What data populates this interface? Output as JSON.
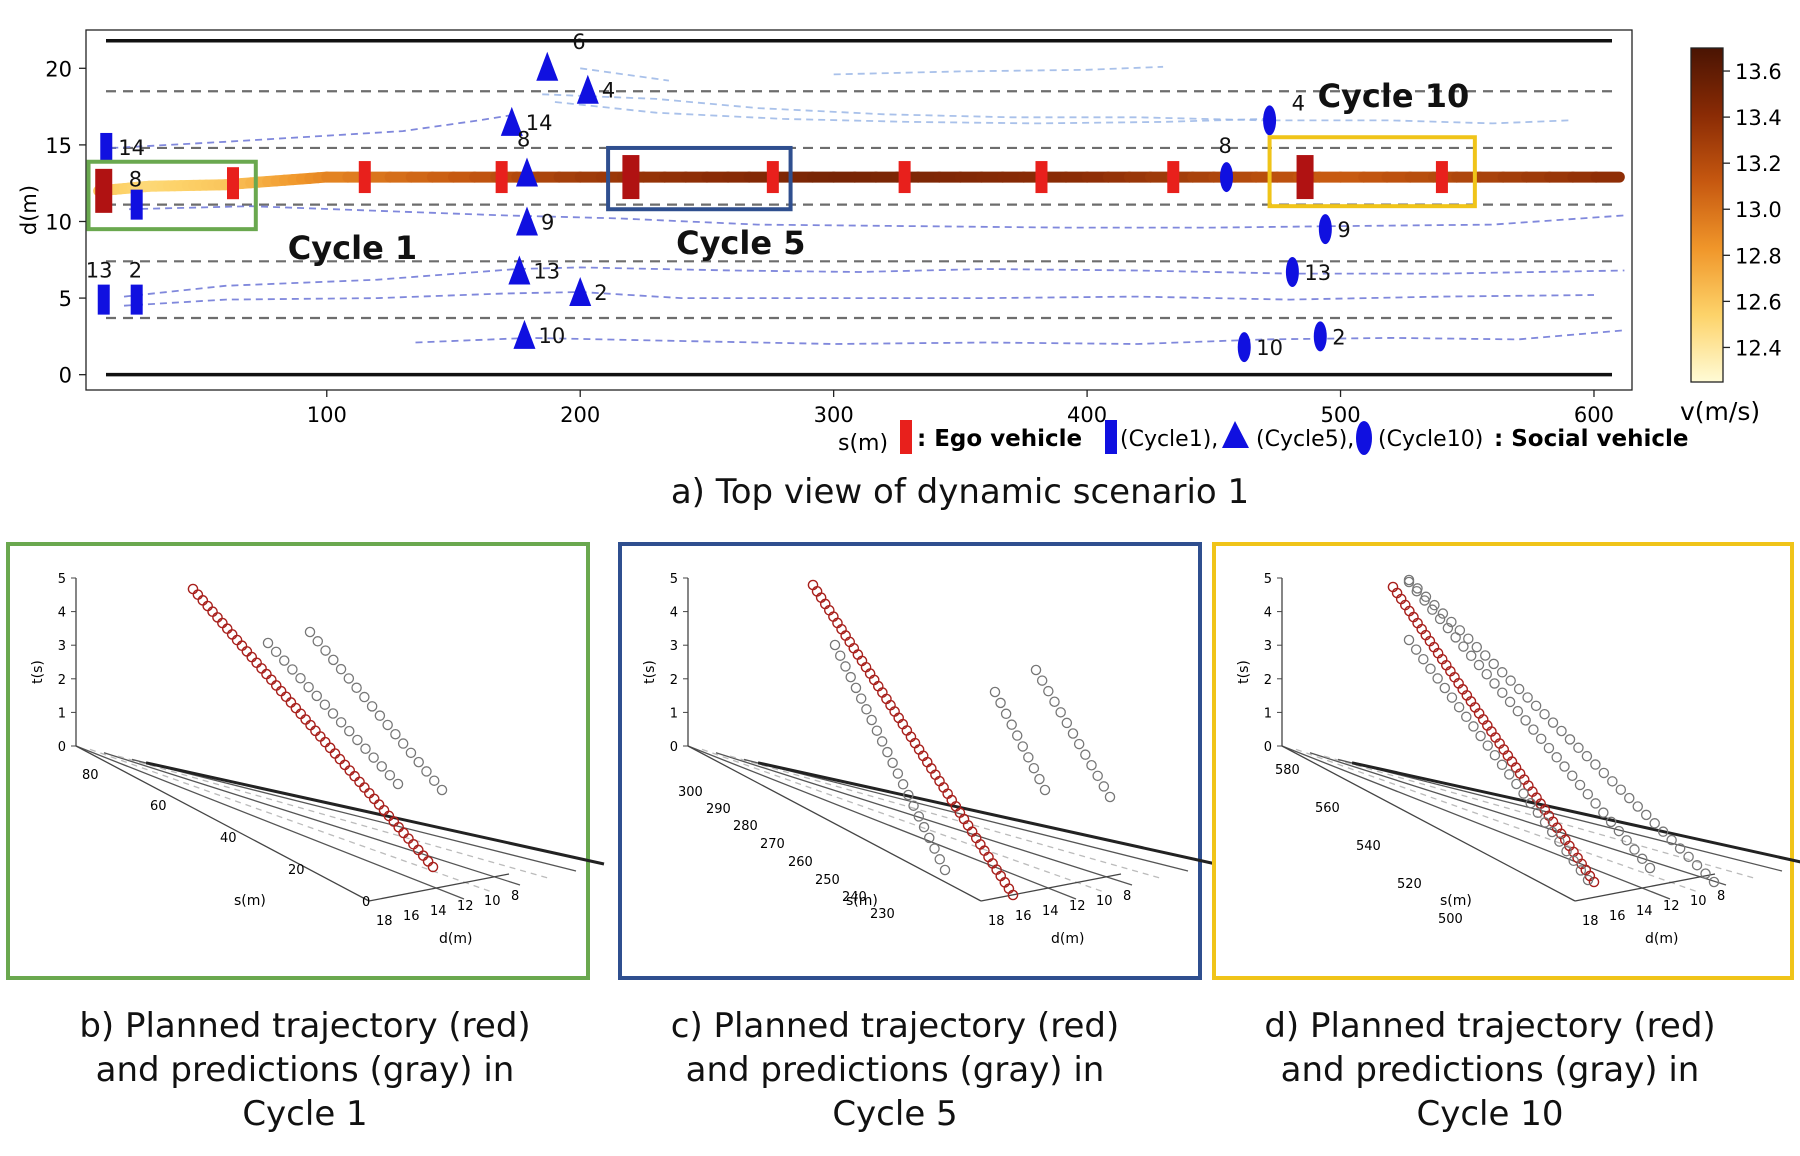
{
  "chart_data": [
    {
      "type": "scatter",
      "name": "top-view",
      "xlabel": "s(m)",
      "ylabel": "d(m)",
      "xlim": [
        5,
        615
      ],
      "ylim": [
        -1,
        22.5
      ],
      "xticks": [
        100,
        200,
        300,
        400,
        500,
        600
      ],
      "yticks": [
        0,
        5,
        10,
        15,
        20
      ],
      "lane_boundaries_solid": [
        0,
        21.8
      ],
      "lane_lines_dashed": [
        3.7,
        7.4,
        11.1,
        14.8,
        18.5
      ],
      "colorbar": {
        "label": "v(m/s)",
        "ticks": [
          12.4,
          12.6,
          12.8,
          13.0,
          13.2,
          13.4,
          13.6
        ],
        "range": [
          12.25,
          13.7
        ],
        "colors": [
          "#fffbd6",
          "#fdd36a",
          "#f0962a",
          "#c65810",
          "#8a2b05",
          "#4a1403"
        ]
      },
      "ego_trajectory": {
        "points": [
          [
            10,
            12.0
          ],
          [
            30,
            12.3
          ],
          [
            60,
            12.4
          ],
          [
            100,
            12.9
          ],
          [
            200,
            12.9
          ],
          [
            300,
            12.9
          ],
          [
            400,
            12.9
          ],
          [
            500,
            12.9
          ],
          [
            610,
            12.9
          ]
        ],
        "speed": [
          12.6,
          12.5,
          12.6,
          12.9,
          13.3,
          13.5,
          13.4,
          13.1,
          13.4
        ]
      },
      "ego_markers": [
        {
          "s": 12,
          "d": 12,
          "big": true
        },
        {
          "s": 63,
          "d": 12.5,
          "big": false
        },
        {
          "s": 115,
          "d": 12.9,
          "big": false
        },
        {
          "s": 169,
          "d": 12.9,
          "big": false
        },
        {
          "s": 220,
          "d": 12.9,
          "big": true
        },
        {
          "s": 276,
          "d": 12.9,
          "big": false
        },
        {
          "s": 328,
          "d": 12.9,
          "big": false
        },
        {
          "s": 382,
          "d": 12.9,
          "big": false
        },
        {
          "s": 434,
          "d": 12.9,
          "big": false
        },
        {
          "s": 486,
          "d": 12.9,
          "big": true
        },
        {
          "s": 540,
          "d": 12.9,
          "big": false
        }
      ],
      "social_cycle1": [
        {
          "id": "14",
          "s": 13,
          "d": 14.8
        },
        {
          "id": "8",
          "s": 25,
          "d": 11.1
        },
        {
          "id": "13",
          "s": 12,
          "d": 4.9
        },
        {
          "id": "2",
          "s": 25,
          "d": 4.9
        }
      ],
      "social_cycle5": [
        {
          "id": "6",
          "s": 187,
          "d": 20.1
        },
        {
          "id": "4",
          "s": 203,
          "d": 18.6
        },
        {
          "id": "14",
          "s": 173,
          "d": 16.5
        },
        {
          "id": "8",
          "s": 179,
          "d": 13.2
        },
        {
          "id": "9",
          "s": 179,
          "d": 10.0
        },
        {
          "id": "13",
          "s": 176,
          "d": 6.8
        },
        {
          "id": "2",
          "s": 200,
          "d": 5.4
        },
        {
          "id": "10",
          "s": 178,
          "d": 2.6
        }
      ],
      "social_cycle10": [
        {
          "id": "4",
          "s": 472,
          "d": 16.6
        },
        {
          "id": "8",
          "s": 455,
          "d": 12.9
        },
        {
          "id": "9",
          "s": 494,
          "d": 9.5
        },
        {
          "id": "13",
          "s": 481,
          "d": 6.7
        },
        {
          "id": "10",
          "s": 462,
          "d": 1.8
        },
        {
          "id": "2",
          "s": 492,
          "d": 2.5
        }
      ],
      "dashed_trajectories": [
        [
          [
            15,
            14.8
          ],
          [
            60,
            15.2
          ],
          [
            100,
            15.6
          ],
          [
            130,
            15.9
          ],
          [
            160,
            16.6
          ],
          [
            175,
            17.0
          ]
        ],
        [
          [
            22,
            10.8
          ],
          [
            70,
            11.0
          ],
          [
            120,
            10.7
          ],
          [
            170,
            10.4
          ],
          [
            215,
            10.2
          ],
          [
            270,
            9.8
          ],
          [
            330,
            9.7
          ],
          [
            390,
            9.6
          ],
          [
            450,
            9.6
          ],
          [
            500,
            9.7
          ],
          [
            560,
            9.8
          ],
          [
            612,
            10.4
          ]
        ],
        [
          [
            20,
            5.1
          ],
          [
            60,
            5.8
          ],
          [
            120,
            6.2
          ],
          [
            175,
            6.9
          ],
          [
            200,
            7.0
          ],
          [
            260,
            6.8
          ],
          [
            310,
            6.7
          ],
          [
            360,
            6.9
          ],
          [
            420,
            6.8
          ],
          [
            480,
            6.6
          ],
          [
            540,
            6.6
          ],
          [
            612,
            6.8
          ]
        ],
        [
          [
            20,
            4.5
          ],
          [
            60,
            4.9
          ],
          [
            120,
            5.0
          ],
          [
            170,
            5.3
          ],
          [
            200,
            5.4
          ],
          [
            240,
            5.0
          ],
          [
            300,
            5.0
          ],
          [
            360,
            5.0
          ],
          [
            420,
            5.1
          ],
          [
            480,
            4.9
          ],
          [
            540,
            5.1
          ],
          [
            600,
            5.2
          ]
        ],
        [
          [
            135,
            2.1
          ],
          [
            180,
            2.4
          ],
          [
            240,
            2.2
          ],
          [
            300,
            2.0
          ],
          [
            360,
            2.1
          ],
          [
            420,
            2.0
          ],
          [
            470,
            2.3
          ],
          [
            520,
            2.4
          ],
          [
            570,
            2.3
          ],
          [
            612,
            2.9
          ]
        ],
        [
          [
            190,
            17.8
          ],
          [
            230,
            17.1
          ],
          [
            280,
            16.7
          ],
          [
            330,
            16.5
          ],
          [
            380,
            16.4
          ],
          [
            430,
            16.5
          ],
          [
            470,
            16.7
          ]
        ],
        [
          [
            185,
            18.3
          ],
          [
            230,
            18.0
          ],
          [
            270,
            17.4
          ],
          [
            320,
            17.0
          ],
          [
            370,
            16.8
          ],
          [
            420,
            16.8
          ],
          [
            470,
            16.6
          ],
          [
            520,
            16.6
          ],
          [
            560,
            16.4
          ],
          [
            590,
            16.6
          ]
        ],
        [
          [
            200,
            20.0
          ],
          [
            235,
            19.2
          ]
        ],
        [
          [
            300,
            19.6
          ],
          [
            350,
            19.8
          ],
          [
            400,
            19.9
          ],
          [
            430,
            20.1
          ]
        ],
        [
          [
            380,
            12.9
          ],
          [
            450,
            12.9
          ]
        ]
      ],
      "highlight_boxes": [
        {
          "label": "Cycle 1",
          "s0": 6,
          "s1": 72,
          "d0": 9.5,
          "d1": 13.9,
          "color": "#6aa84f"
        },
        {
          "label": "Cycle 5",
          "s0": 211,
          "s1": 283,
          "d0": 10.8,
          "d1": 14.8,
          "color": "#2f4f8f"
        },
        {
          "label": "Cycle 10",
          "s0": 472,
          "s1": 553,
          "d0": 11.0,
          "d1": 15.5,
          "color": "#f0c419"
        }
      ],
      "legend": {
        "ego_label": ": Ego vehicle",
        "cycle1_label": "(Cycle1),",
        "cycle5_label": "(Cycle5),",
        "cycle10_label": "(Cycle10)",
        "social_label": ": Social vehicle"
      },
      "caption": "a)  Top view of dynamic scenario 1"
    },
    {
      "type": "scatter",
      "name": "cycle-1-3d",
      "zlabel": "t(s)",
      "xlabel": "s(m)",
      "ylabel": "d(m)",
      "t_ticks": [
        "0",
        "1",
        "2",
        "3",
        "4",
        "5"
      ],
      "s_ticks": [
        "80",
        "60",
        "40",
        "20",
        "0"
      ],
      "d_ticks": [
        "18",
        "16",
        "14",
        "12",
        "10",
        "8"
      ],
      "planned_count": 50,
      "prediction_groups": 2,
      "caption": "b)  Planned trajectory (red)\nand predictions (gray) in\nCycle 1"
    },
    {
      "type": "scatter",
      "name": "cycle-5-3d",
      "zlabel": "t(s)",
      "xlabel": "s(m)",
      "ylabel": "d(m)",
      "t_ticks": [
        "0",
        "1",
        "2",
        "3",
        "4",
        "5"
      ],
      "s_ticks": [
        "300",
        "290",
        "280",
        "270",
        "260",
        "250",
        "240",
        "230"
      ],
      "d_ticks": [
        "18",
        "16",
        "14",
        "12",
        "10",
        "8"
      ],
      "planned_count": 50,
      "prediction_groups": 3,
      "caption": "c)  Planned trajectory (red)\nand predictions (gray) in\nCycle 5"
    },
    {
      "type": "scatter",
      "name": "cycle-10-3d",
      "zlabel": "t(s)",
      "xlabel": "s(m)",
      "ylabel": "d(m)",
      "t_ticks": [
        "0",
        "1",
        "2",
        "3",
        "4",
        "5"
      ],
      "s_ticks": [
        "580",
        "560",
        "540",
        "520",
        "500"
      ],
      "d_ticks": [
        "18",
        "16",
        "14",
        "12",
        "10",
        "8"
      ],
      "planned_count": 50,
      "prediction_groups": 3,
      "caption": "d)  Planned trajectory (red)\nand predictions (gray) in\nCycle 10"
    }
  ]
}
